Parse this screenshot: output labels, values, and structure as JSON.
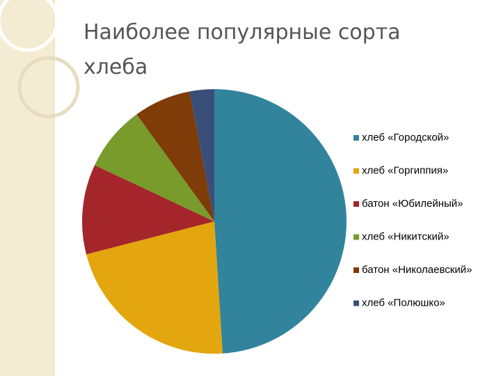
{
  "chart_data": {
    "type": "pie",
    "title": "Наиболее популярные сорта хлеба",
    "categories": [
      "хлеб «Городской»",
      "хлеб «Горгиппия»",
      "батон «Юбилейный»",
      "хлеб «Никитский»",
      "батон «Николаевский»",
      "хлеб «Полюшко»"
    ],
    "values": [
      49,
      22,
      11,
      8,
      7,
      3
    ],
    "colors": [
      "#31849b",
      "#e3a60f",
      "#a5262a",
      "#789b2c",
      "#7f3b08",
      "#3a4e7a"
    ],
    "legend": "right"
  }
}
